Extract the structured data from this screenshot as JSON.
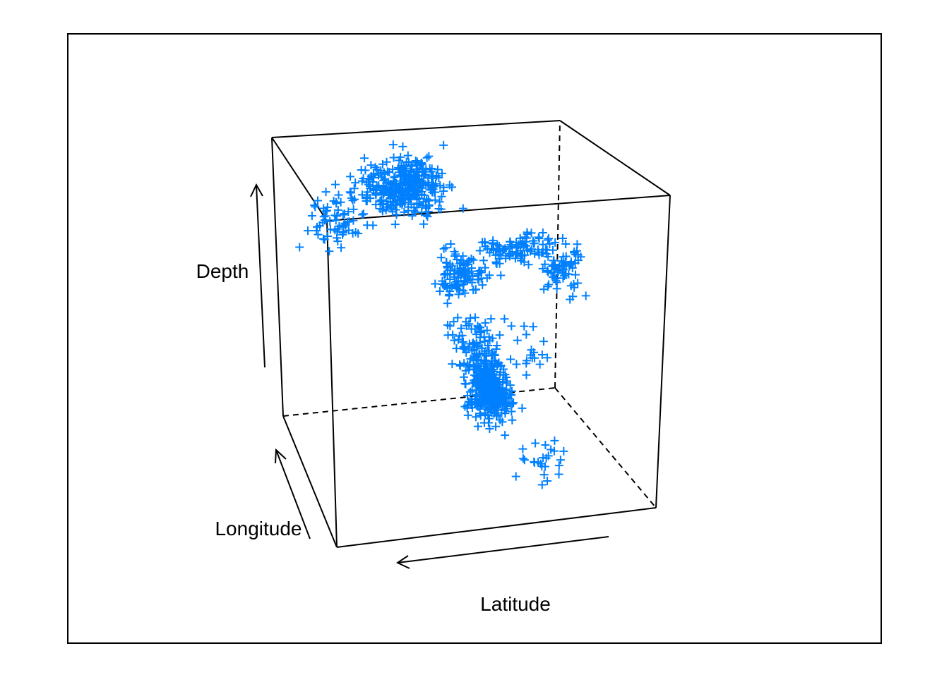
{
  "chart_data": {
    "type": "scatter",
    "projection": "3d",
    "title": "",
    "axes": {
      "x": "Latitude",
      "y": "Longitude",
      "z": "Depth"
    },
    "marker": "+",
    "marker_color": "#0080ff",
    "box": true,
    "grid": false,
    "clusters": [
      {
        "name": "",
        "latitude": [
          -21,
          -15
        ],
        "longitude": [
          178,
          186
        ],
        "depth": [
          500,
          680
        ],
        "count": 330
      },
      {
        "name": "",
        "latitude": [
          -24,
          -16
        ],
        "longitude": [
          174,
          182
        ],
        "depth": [
          350,
          500
        ],
        "count": 90
      },
      {
        "name": "",
        "latitude": [
          -25,
          -17
        ],
        "longitude": [
          176,
          182
        ],
        "depth": [
          200,
          350
        ],
        "count": 110
      },
      {
        "name": "",
        "latitude": [
          -32,
          -20
        ],
        "longitude": [
          176,
          188
        ],
        "depth": [
          40,
          160
        ],
        "count": 350
      },
      {
        "name": "",
        "latitude": [
          -38,
          -29
        ],
        "longitude": [
          176,
          182
        ],
        "depth": [
          40,
          200
        ],
        "count": 70
      },
      {
        "name": "",
        "latitude": [
          -16,
          -10
        ],
        "longitude": [
          166,
          171
        ],
        "depth": [
          40,
          240
        ],
        "count": 70
      },
      {
        "name": "",
        "latitude": [
          -23,
          -12
        ],
        "longitude": [
          166,
          170
        ],
        "depth": [
          40,
          120
        ],
        "count": 90
      },
      {
        "name": "",
        "latitude": [
          -20,
          -12
        ],
        "longitude": [
          165,
          172
        ],
        "depth": [
          500,
          660
        ],
        "count": 25
      },
      {
        "name": "",
        "latitude": [
          -20,
          -12
        ],
        "longitude": [
          170,
          178
        ],
        "depth": [
          300,
          500
        ],
        "count": 20
      }
    ]
  }
}
